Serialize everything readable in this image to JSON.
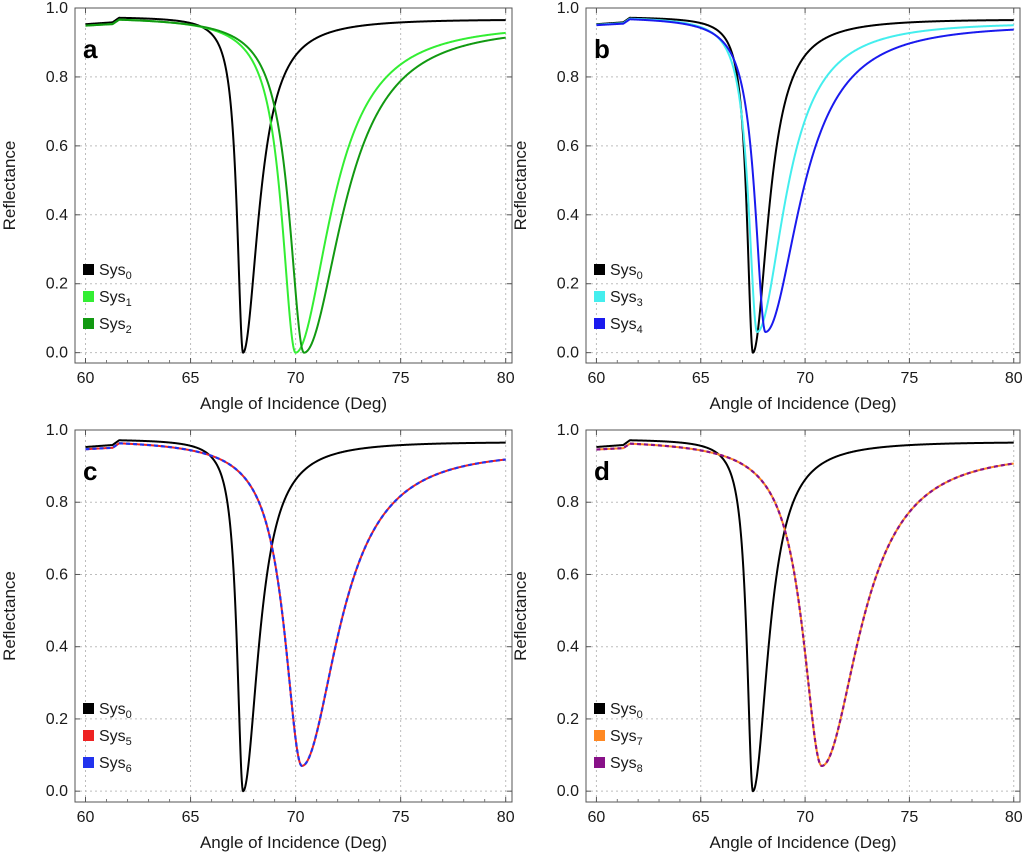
{
  "chart_data": [
    {
      "type": "line",
      "panel_label": "a",
      "xlabel": "Angle of Incidence (Deg)",
      "ylabel": "Reflectance",
      "xlim": [
        59.5,
        80.3
      ],
      "ylim": [
        -0.03,
        1.0
      ],
      "xticks": [
        60,
        65,
        70,
        75,
        80
      ],
      "xtick_labels": [
        "60",
        "65",
        "70",
        "75",
        "80"
      ],
      "yticks": [
        0.0,
        0.2,
        0.4,
        0.6,
        0.8,
        1.0
      ],
      "ytick_labels": [
        "0.0",
        "0.2",
        "0.4",
        "0.6",
        "0.8",
        "1.0"
      ],
      "grid": true,
      "legend_position": "bottom-left",
      "series": [
        {
          "name": "Sys",
          "subscript": "0",
          "color": "#000000",
          "style": "solid",
          "dip_angle": 67.5,
          "min_value": 0.0,
          "left_width": 0.35,
          "right_width": 0.9,
          "baseline": 0.975,
          "tail_value": 0.97
        },
        {
          "name": "Sys",
          "subscript": "1",
          "color": "#33ee33",
          "style": "solid",
          "dip_angle": 70.0,
          "min_value": 0.0,
          "left_width": 0.8,
          "right_width": 2.0,
          "baseline": 0.975,
          "tail_value": 0.965
        },
        {
          "name": "Sys",
          "subscript": "2",
          "color": "#119911",
          "style": "solid",
          "dip_angle": 70.4,
          "min_value": 0.0,
          "left_width": 0.85,
          "right_width": 2.2,
          "baseline": 0.975,
          "tail_value": 0.962
        }
      ]
    },
    {
      "type": "line",
      "panel_label": "b",
      "xlabel": "Angle of Incidence (Deg)",
      "ylabel": "Reflectance",
      "xlim": [
        59.5,
        80.3
      ],
      "ylim": [
        -0.03,
        1.0
      ],
      "xticks": [
        60,
        65,
        70,
        75,
        80
      ],
      "xtick_labels": [
        "60",
        "65",
        "70",
        "75",
        "80"
      ],
      "yticks": [
        0.0,
        0.2,
        0.4,
        0.6,
        0.8,
        1.0
      ],
      "ytick_labels": [
        "0.0",
        "0.2",
        "0.4",
        "0.6",
        "0.8",
        "1.0"
      ],
      "grid": true,
      "legend_position": "bottom-left",
      "series": [
        {
          "name": "Sys",
          "subscript": "0",
          "color": "#000000",
          "style": "solid",
          "dip_angle": 67.5,
          "min_value": 0.0,
          "left_width": 0.35,
          "right_width": 0.9,
          "baseline": 0.975,
          "tail_value": 0.97
        },
        {
          "name": "Sys",
          "subscript": "3",
          "color": "#44eeee",
          "style": "solid",
          "dip_angle": 67.7,
          "min_value": 0.06,
          "left_width": 0.5,
          "right_width": 1.6,
          "baseline": 0.975,
          "tail_value": 0.965
        },
        {
          "name": "Sys",
          "subscript": "4",
          "color": "#1a1aee",
          "style": "solid",
          "dip_angle": 68.1,
          "min_value": 0.06,
          "left_width": 0.6,
          "right_width": 2.0,
          "baseline": 0.975,
          "tail_value": 0.962
        }
      ]
    },
    {
      "type": "line",
      "panel_label": "c",
      "xlabel": "Angle of Incidence (Deg)",
      "ylabel": "Reflectance",
      "xlim": [
        59.5,
        80.3
      ],
      "ylim": [
        -0.03,
        1.0
      ],
      "xticks": [
        60,
        65,
        70,
        75,
        80
      ],
      "xtick_labels": [
        "60",
        "65",
        "70",
        "75",
        "80"
      ],
      "yticks": [
        0.0,
        0.2,
        0.4,
        0.6,
        0.8,
        1.0
      ],
      "ytick_labels": [
        "0.0",
        "0.2",
        "0.4",
        "0.6",
        "0.8",
        "1.0"
      ],
      "grid": true,
      "legend_position": "bottom-left",
      "series": [
        {
          "name": "Sys",
          "subscript": "0",
          "color": "#000000",
          "style": "solid",
          "dip_angle": 67.5,
          "min_value": 0.0,
          "left_width": 0.35,
          "right_width": 0.9,
          "baseline": 0.975,
          "tail_value": 0.97
        },
        {
          "name": "Sys",
          "subscript": "5",
          "color": "#ee2222",
          "style": "solid",
          "dip_angle": 70.3,
          "min_value": 0.07,
          "left_width": 1.0,
          "right_width": 2.1,
          "baseline": 0.975,
          "tail_value": 0.958
        },
        {
          "name": "Sys",
          "subscript": "6",
          "color": "#2233ee",
          "style": "dashed",
          "dip_angle": 70.3,
          "min_value": 0.07,
          "left_width": 1.0,
          "right_width": 2.1,
          "baseline": 0.975,
          "tail_value": 0.958
        }
      ]
    },
    {
      "type": "line",
      "panel_label": "d",
      "xlabel": "Angle of Incidence (Deg)",
      "ylabel": "Reflectance",
      "xlim": [
        59.5,
        80.3
      ],
      "ylim": [
        -0.03,
        1.0
      ],
      "xticks": [
        60,
        65,
        70,
        75,
        80
      ],
      "xtick_labels": [
        "60",
        "65",
        "70",
        "75",
        "80"
      ],
      "yticks": [
        0.0,
        0.2,
        0.4,
        0.6,
        0.8,
        1.0
      ],
      "ytick_labels": [
        "0.0",
        "0.2",
        "0.4",
        "0.6",
        "0.8",
        "1.0"
      ],
      "grid": true,
      "legend_position": "bottom-left",
      "series": [
        {
          "name": "Sys",
          "subscript": "0",
          "color": "#000000",
          "style": "solid",
          "dip_angle": 67.5,
          "min_value": 0.0,
          "left_width": 0.35,
          "right_width": 0.9,
          "baseline": 0.975,
          "tail_value": 0.97
        },
        {
          "name": "Sys",
          "subscript": "7",
          "color": "#ff8822",
          "style": "solid",
          "dip_angle": 70.8,
          "min_value": 0.07,
          "left_width": 1.1,
          "right_width": 2.2,
          "baseline": 0.975,
          "tail_value": 0.955
        },
        {
          "name": "Sys",
          "subscript": "8",
          "color": "#881188",
          "style": "dashed",
          "dip_angle": 70.8,
          "min_value": 0.07,
          "left_width": 1.1,
          "right_width": 2.2,
          "baseline": 0.975,
          "tail_value": 0.955
        }
      ]
    }
  ]
}
